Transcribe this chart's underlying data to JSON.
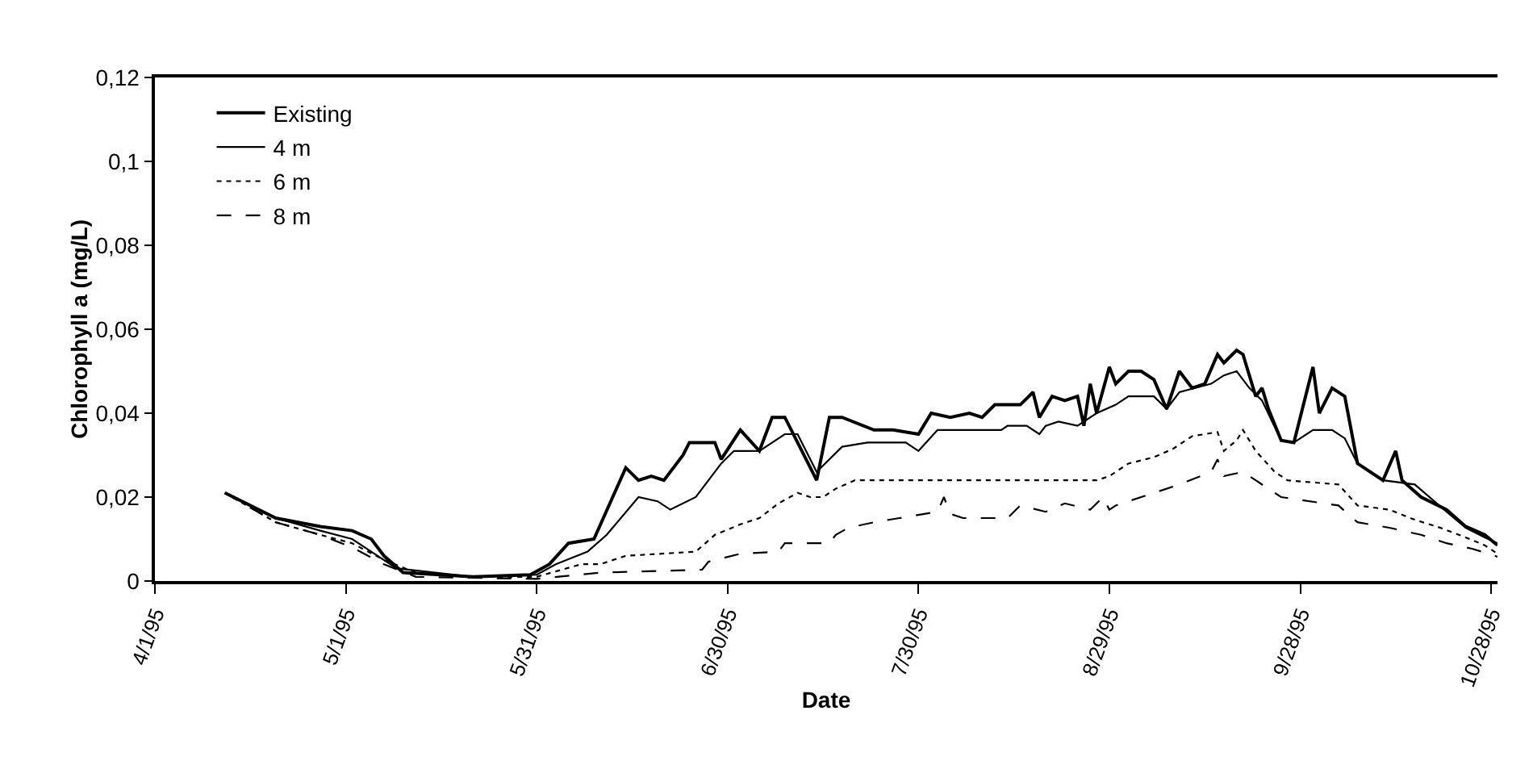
{
  "chart_data": {
    "type": "line",
    "xlabel": "Date",
    "ylabel": "Chlorophyll a (mg/L)",
    "legend": "top left",
    "grid": false,
    "xlim": [
      "1995-04-01",
      "1995-10-29"
    ],
    "xticks": [
      {
        "value": "1995-04-01",
        "label": "4/1/95"
      },
      {
        "value": "1995-05-01",
        "label": "5/1/95"
      },
      {
        "value": "1995-05-31",
        "label": "5/31/95"
      },
      {
        "value": "1995-06-30",
        "label": "6/30/95"
      },
      {
        "value": "1995-07-30",
        "label": "7/30/95"
      },
      {
        "value": "1995-08-29",
        "label": "8/29/95"
      },
      {
        "value": "1995-09-28",
        "label": "9/28/95"
      },
      {
        "value": "1995-10-28",
        "label": "10/28/95"
      }
    ],
    "ylim": [
      0,
      0.12
    ],
    "yticks": [
      0,
      {
        "value": 0.02,
        "label": "0,02"
      },
      {
        "value": 0.04,
        "label": "0,04"
      },
      {
        "value": 0.06,
        "label": "0,06"
      },
      {
        "value": 0.08,
        "label": "0,08"
      },
      {
        "value": 0.1,
        "label": "0,1"
      },
      {
        "value": 0.12,
        "label": "0,12"
      }
    ],
    "series": [
      {
        "name": "Existing",
        "color": "#000000",
        "line_style": "solid",
        "x": [
          "1995-04-12",
          "1995-04-20",
          "1995-04-27",
          "1995-05-02",
          "1995-05-05",
          "1995-05-07",
          "1995-05-10",
          "1995-05-21",
          "1995-05-30",
          "1995-06-02",
          "1995-06-05",
          "1995-06-09",
          "1995-06-14",
          "1995-06-16",
          "1995-06-18",
          "1995-06-20",
          "1995-06-23",
          "1995-06-24",
          "1995-06-28",
          "1995-06-29",
          "1995-07-02",
          "1995-07-05",
          "1995-07-07",
          "1995-07-09",
          "1995-07-14",
          "1995-07-16",
          "1995-07-18",
          "1995-07-23",
          "1995-07-26",
          "1995-07-30",
          "1995-08-01",
          "1995-08-04",
          "1995-08-07",
          "1995-08-09",
          "1995-08-11",
          "1995-08-15",
          "1995-08-17",
          "1995-08-18",
          "1995-08-20",
          "1995-08-22",
          "1995-08-24",
          "1995-08-25",
          "1995-08-26",
          "1995-08-27",
          "1995-08-29",
          "1995-08-30",
          "1995-09-01",
          "1995-09-03",
          "1995-09-05",
          "1995-09-07",
          "1995-09-09",
          "1995-09-11",
          "1995-09-13",
          "1995-09-15",
          "1995-09-16",
          "1995-09-18",
          "1995-09-19",
          "1995-09-21",
          "1995-09-22",
          "1995-09-23",
          "1995-09-25",
          "1995-09-27",
          "1995-09-30",
          "1995-10-01",
          "1995-10-03",
          "1995-10-05",
          "1995-10-07",
          "1995-10-11",
          "1995-10-13",
          "1995-10-14",
          "1995-10-17",
          "1995-10-21",
          "1995-10-24",
          "1995-10-27",
          "1995-10-29"
        ],
        "values": [
          0.021,
          0.015,
          0.013,
          0.012,
          0.01,
          0.006,
          0.002,
          0.001,
          0.0015,
          0.004,
          0.009,
          0.01,
          0.027,
          0.024,
          0.025,
          0.024,
          0.03,
          0.033,
          0.033,
          0.029,
          0.036,
          0.031,
          0.039,
          0.039,
          0.024,
          0.039,
          0.039,
          0.036,
          0.036,
          0.035,
          0.04,
          0.039,
          0.04,
          0.039,
          0.042,
          0.042,
          0.045,
          0.039,
          0.044,
          0.043,
          0.044,
          0.037,
          0.047,
          0.04,
          0.051,
          0.047,
          0.05,
          0.05,
          0.048,
          0.041,
          0.05,
          0.046,
          0.047,
          0.054,
          0.052,
          0.055,
          0.054,
          0.044,
          0.046,
          0.041,
          0.0335,
          0.033,
          0.051,
          0.04,
          0.046,
          0.044,
          0.028,
          0.024,
          0.031,
          0.024,
          0.02,
          0.017,
          0.013,
          0.011,
          0.0085
        ]
      },
      {
        "name": "4 m",
        "color": "#000000",
        "line_style": "solid",
        "x": [
          "1995-04-12",
          "1995-04-20",
          "1995-04-27",
          "1995-05-02",
          "1995-05-05",
          "1995-05-09",
          "1995-05-21",
          "1995-05-31",
          "1995-06-03",
          "1995-06-08",
          "1995-06-11",
          "1995-06-16",
          "1995-06-19",
          "1995-06-21",
          "1995-06-25",
          "1995-06-29",
          "1995-07-01",
          "1995-07-05",
          "1995-07-09",
          "1995-07-11",
          "1995-07-14",
          "1995-07-18",
          "1995-07-22",
          "1995-07-28",
          "1995-07-30",
          "1995-08-02",
          "1995-08-07",
          "1995-08-12",
          "1995-08-13",
          "1995-08-16",
          "1995-08-18",
          "1995-08-19",
          "1995-08-21",
          "1995-08-24",
          "1995-08-27",
          "1995-08-30",
          "1995-09-01",
          "1995-09-05",
          "1995-09-07",
          "1995-09-09",
          "1995-09-14",
          "1995-09-16",
          "1995-09-18",
          "1995-09-20",
          "1995-09-22",
          "1995-09-25",
          "1995-09-27",
          "1995-09-30",
          "1995-10-03",
          "1995-10-05",
          "1995-10-07",
          "1995-10-11",
          "1995-10-16",
          "1995-10-21",
          "1995-10-24",
          "1995-10-27",
          "1995-10-29"
        ],
        "values": [
          0.021,
          0.015,
          0.012,
          0.01,
          0.007,
          0.003,
          0.001,
          0.0015,
          0.004,
          0.007,
          0.011,
          0.02,
          0.019,
          0.017,
          0.02,
          0.028,
          0.031,
          0.031,
          0.035,
          0.035,
          0.026,
          0.032,
          0.033,
          0.033,
          0.031,
          0.036,
          0.036,
          0.036,
          0.037,
          0.037,
          0.035,
          0.037,
          0.038,
          0.037,
          0.04,
          0.042,
          0.044,
          0.044,
          0.041,
          0.045,
          0.047,
          0.049,
          0.05,
          0.046,
          0.043,
          0.0335,
          0.033,
          0.036,
          0.036,
          0.034,
          0.028,
          0.024,
          0.023,
          0.0165,
          0.0127,
          0.0104,
          0.009
        ]
      },
      {
        "name": "6 m",
        "color": "#000000",
        "line_style": "dotted",
        "x": [
          "1995-04-12",
          "1995-04-20",
          "1995-04-27",
          "1995-05-02",
          "1995-05-07",
          "1995-05-12",
          "1995-05-20",
          "1995-05-31",
          "1995-06-07",
          "1995-06-10",
          "1995-06-14",
          "1995-06-25",
          "1995-06-28",
          "1995-07-02",
          "1995-07-05",
          "1995-07-08",
          "1995-07-11",
          "1995-07-13",
          "1995-07-15",
          "1995-07-17",
          "1995-07-20",
          "1995-07-28",
          "1995-08-02",
          "1995-08-16",
          "1995-08-27",
          "1995-08-29",
          "1995-09-01",
          "1995-09-05",
          "1995-09-08",
          "1995-09-11",
          "1995-09-15",
          "1995-09-16",
          "1995-09-18",
          "1995-09-19",
          "1995-09-21",
          "1995-09-24",
          "1995-09-26",
          "1995-10-04",
          "1995-10-07",
          "1995-10-12",
          "1995-10-16",
          "1995-10-20",
          "1995-10-24",
          "1995-10-27",
          "1995-10-29"
        ],
        "values": [
          0.021,
          0.014,
          0.011,
          0.009,
          0.005,
          0.002,
          0.001,
          0.001,
          0.004,
          0.004,
          0.006,
          0.007,
          0.011,
          0.0135,
          0.015,
          0.0185,
          0.021,
          0.02,
          0.02,
          0.022,
          0.024,
          0.024,
          0.024,
          0.024,
          0.024,
          0.025,
          0.028,
          0.0295,
          0.0315,
          0.0345,
          0.0355,
          0.031,
          0.0335,
          0.036,
          0.031,
          0.026,
          0.024,
          0.023,
          0.018,
          0.017,
          0.0146,
          0.0127,
          0.0104,
          0.0085,
          0.0065
        ]
      },
      {
        "name": "8 m",
        "color": "#000000",
        "line_style": "dashed",
        "x": [
          "1995-04-12",
          "1995-04-20",
          "1995-04-27",
          "1995-05-02",
          "1995-05-07",
          "1995-05-12",
          "1995-05-31",
          "1995-06-10",
          "1995-06-26",
          "1995-06-27",
          "1995-07-02",
          "1995-07-08",
          "1995-07-09",
          "1995-07-16",
          "1995-07-17",
          "1995-07-19",
          "1995-07-23",
          "1995-07-27",
          "1995-08-02",
          "1995-08-03",
          "1995-08-04",
          "1995-08-06",
          "1995-08-13",
          "1995-08-15",
          "1995-08-19",
          "1995-08-22",
          "1995-08-26",
          "1995-08-28",
          "1995-08-29",
          "1995-08-30",
          "1995-09-05",
          "1995-09-09",
          "1995-09-14",
          "1995-09-15",
          "1995-09-16",
          "1995-09-19",
          "1995-09-21",
          "1995-09-25",
          "1995-10-04",
          "1995-10-07",
          "1995-10-12",
          "1995-10-17",
          "1995-10-21",
          "1995-10-25",
          "1995-10-29"
        ],
        "values": [
          0.021,
          0.014,
          0.011,
          0.008,
          0.004,
          0.001,
          0.0005,
          0.002,
          0.0027,
          0.0046,
          0.0065,
          0.007,
          0.009,
          0.009,
          0.011,
          0.0127,
          0.014,
          0.015,
          0.0165,
          0.02,
          0.016,
          0.015,
          0.015,
          0.018,
          0.0165,
          0.0185,
          0.017,
          0.02,
          0.017,
          0.018,
          0.021,
          0.023,
          0.026,
          0.029,
          0.025,
          0.026,
          0.024,
          0.02,
          0.018,
          0.014,
          0.0127,
          0.011,
          0.009,
          0.0077,
          0.0058
        ]
      }
    ]
  }
}
